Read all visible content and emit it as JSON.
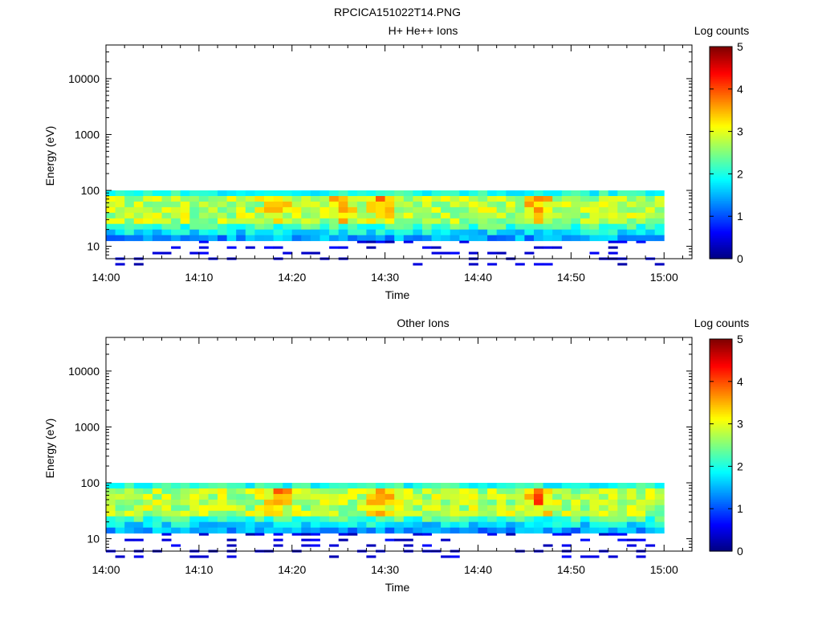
{
  "figure_title": "RPCICA151022T14.PNG",
  "colors": {
    "jet": [
      "#00007f",
      "#0000ff",
      "#007fff",
      "#00ffff",
      "#7fff7f",
      "#ffff00",
      "#ff7f00",
      "#ff0000",
      "#7f0000"
    ],
    "axis": "#000000",
    "background": "#ffffff"
  },
  "chart_data": [
    {
      "type": "heatmap",
      "title": "H+ He++ Ions",
      "xlabel": "Time",
      "ylabel": "Energy (eV)",
      "x_tick_labels": [
        "14:00",
        "14:10",
        "14:20",
        "14:30",
        "14:40",
        "14:50",
        "15:00"
      ],
      "x_ticks_minutes": [
        0,
        10,
        20,
        30,
        40,
        50,
        60
      ],
      "xlim_minutes": [
        0,
        63
      ],
      "y_scale": "log",
      "ylim": [
        6,
        40000
      ],
      "y_tick_labels": [
        "10",
        "100",
        "1000",
        "10000"
      ],
      "y_ticks": [
        10,
        100,
        1000,
        10000
      ],
      "colorbar": {
        "label": "Log counts",
        "range": [
          0,
          5
        ],
        "tick_labels": [
          "0",
          "1",
          "2",
          "3",
          "4",
          "5"
        ]
      },
      "energy_band_eV": [
        6,
        100
      ],
      "peak_log_counts_approx": 3.8,
      "peak_times": [
        "14:18",
        "14:25",
        "14:29",
        "14:46"
      ]
    },
    {
      "type": "heatmap",
      "title": "Other Ions",
      "xlabel": "Time",
      "ylabel": "Energy (eV)",
      "x_tick_labels": [
        "14:00",
        "14:10",
        "14:20",
        "14:30",
        "14:40",
        "14:50",
        "15:00"
      ],
      "x_ticks_minutes": [
        0,
        10,
        20,
        30,
        40,
        50,
        60
      ],
      "xlim_minutes": [
        0,
        63
      ],
      "y_scale": "log",
      "ylim": [
        6,
        40000
      ],
      "y_tick_labels": [
        "10",
        "100",
        "1000",
        "10000"
      ],
      "y_ticks": [
        10,
        100,
        1000,
        10000
      ],
      "colorbar": {
        "label": "Log counts",
        "range": [
          0,
          5
        ],
        "tick_labels": [
          "0",
          "1",
          "2",
          "3",
          "4",
          "5"
        ]
      },
      "energy_band_eV": [
        6,
        100
      ],
      "peak_log_counts_approx": 4.0,
      "peak_times": [
        "14:18",
        "14:29",
        "14:46"
      ]
    }
  ]
}
